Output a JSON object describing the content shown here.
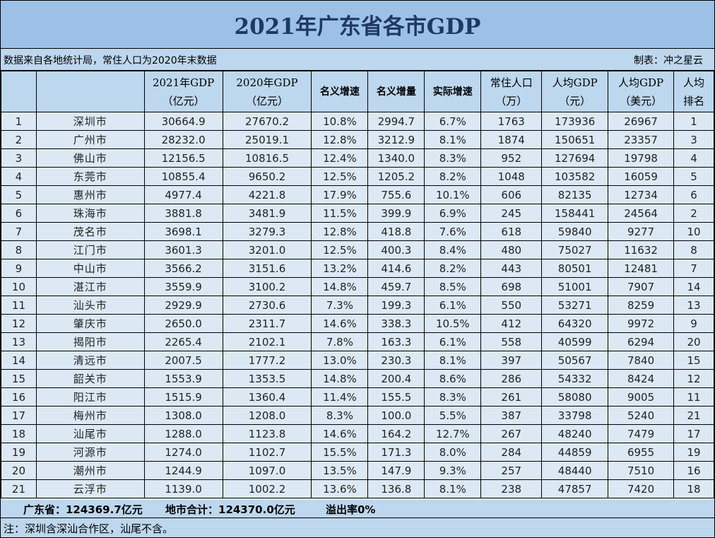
{
  "title": "2021年广东省各市GDP",
  "info": {
    "source": "数据来自各地统计局，常住人口为2020年末数据",
    "maker": "制表：冲之星云"
  },
  "table": {
    "headers": [
      {
        "l1": "",
        "l2": ""
      },
      {
        "l1": "",
        "l2": ""
      },
      {
        "l1": "2021年GDP",
        "l2": "（亿元）"
      },
      {
        "l1": "2020年GDP",
        "l2": "（亿元）"
      },
      {
        "l1": "名义增速",
        "l2": ""
      },
      {
        "l1": "名义增量",
        "l2": ""
      },
      {
        "l1": "实际增速",
        "l2": ""
      },
      {
        "l1": "常住人口",
        "l2": "（万）"
      },
      {
        "l1": "人均GDP",
        "l2": "（元）"
      },
      {
        "l1": "人均GDP",
        "l2": "（美元）"
      },
      {
        "l1": "人均",
        "l2": "排名"
      }
    ],
    "rows": [
      [
        "1",
        "深圳市",
        "30664.9",
        "27670.2",
        "10.8%",
        "2994.7",
        "6.7%",
        "1763",
        "173936",
        "26967",
        "1"
      ],
      [
        "2",
        "广州市",
        "28232.0",
        "25019.1",
        "12.8%",
        "3212.9",
        "8.1%",
        "1874",
        "150651",
        "23357",
        "3"
      ],
      [
        "3",
        "佛山市",
        "12156.5",
        "10816.5",
        "12.4%",
        "1340.0",
        "8.3%",
        "952",
        "127694",
        "19798",
        "4"
      ],
      [
        "4",
        "东莞市",
        "10855.4",
        "9650.2",
        "12.5%",
        "1205.2",
        "8.2%",
        "1048",
        "103582",
        "16059",
        "5"
      ],
      [
        "5",
        "惠州市",
        "4977.4",
        "4221.8",
        "17.9%",
        "755.6",
        "10.1%",
        "606",
        "82135",
        "12734",
        "6"
      ],
      [
        "6",
        "珠海市",
        "3881.8",
        "3481.9",
        "11.5%",
        "399.9",
        "6.9%",
        "245",
        "158441",
        "24564",
        "2"
      ],
      [
        "7",
        "茂名市",
        "3698.1",
        "3279.3",
        "12.8%",
        "418.8",
        "7.6%",
        "618",
        "59840",
        "9277",
        "10"
      ],
      [
        "8",
        "江门市",
        "3601.3",
        "3201.0",
        "12.5%",
        "400.3",
        "8.4%",
        "480",
        "75027",
        "11632",
        "8"
      ],
      [
        "9",
        "中山市",
        "3566.2",
        "3151.6",
        "13.2%",
        "414.6",
        "8.2%",
        "443",
        "80501",
        "12481",
        "7"
      ],
      [
        "10",
        "湛江市",
        "3559.9",
        "3100.2",
        "14.8%",
        "459.7",
        "8.5%",
        "698",
        "51001",
        "7907",
        "14"
      ],
      [
        "11",
        "汕头市",
        "2929.9",
        "2730.6",
        "7.3%",
        "199.3",
        "6.1%",
        "550",
        "53271",
        "8259",
        "13"
      ],
      [
        "12",
        "肇庆市",
        "2650.0",
        "2311.7",
        "14.6%",
        "338.3",
        "10.5%",
        "412",
        "64320",
        "9972",
        "9"
      ],
      [
        "13",
        "揭阳市",
        "2265.4",
        "2102.1",
        "7.8%",
        "163.3",
        "6.1%",
        "558",
        "40599",
        "6294",
        "20"
      ],
      [
        "14",
        "清远市",
        "2007.5",
        "1777.2",
        "13.0%",
        "230.3",
        "8.1%",
        "397",
        "50567",
        "7840",
        "15"
      ],
      [
        "15",
        "韶关市",
        "1553.9",
        "1353.5",
        "14.8%",
        "200.4",
        "8.6%",
        "286",
        "54332",
        "8424",
        "12"
      ],
      [
        "16",
        "阳江市",
        "1515.9",
        "1360.4",
        "11.4%",
        "155.5",
        "8.3%",
        "261",
        "58080",
        "9005",
        "11"
      ],
      [
        "17",
        "梅州市",
        "1308.0",
        "1208.0",
        "8.3%",
        "100.0",
        "5.5%",
        "387",
        "33798",
        "5240",
        "21"
      ],
      [
        "18",
        "汕尾市",
        "1288.0",
        "1123.8",
        "14.6%",
        "164.2",
        "12.7%",
        "267",
        "48240",
        "7479",
        "17"
      ],
      [
        "19",
        "河源市",
        "1274.0",
        "1102.7",
        "15.5%",
        "171.3",
        "8.0%",
        "284",
        "44859",
        "6955",
        "19"
      ],
      [
        "20",
        "潮州市",
        "1244.9",
        "1097.0",
        "13.5%",
        "147.9",
        "9.3%",
        "257",
        "48440",
        "7510",
        "16"
      ],
      [
        "21",
        "云浮市",
        "1139.0",
        "1002.2",
        "13.6%",
        "136.8",
        "8.1%",
        "238",
        "47857",
        "7420",
        "18"
      ]
    ]
  },
  "summary": {
    "province": "广东省：124369.7亿元",
    "cities_total": "地市合计：124370.0亿元",
    "overflow": "溢出率0%"
  },
  "note": "注：深圳含深汕合作区，汕尾不含。"
}
